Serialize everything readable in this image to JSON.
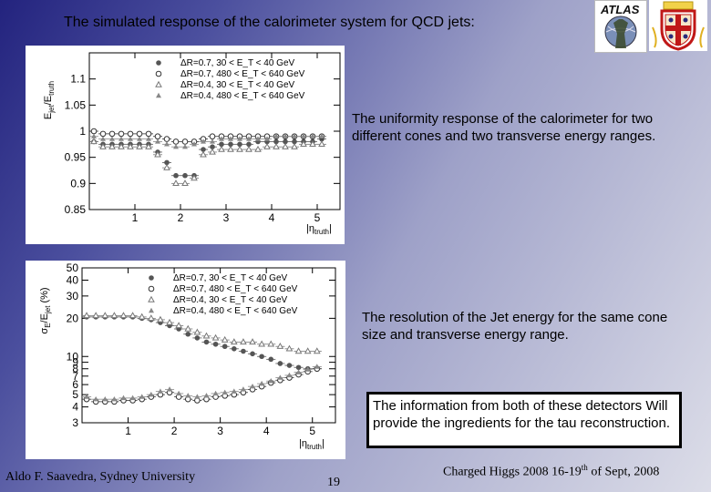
{
  "slide": {
    "title": "The simulated response of the calorimeter system for QCD jets:",
    "logos": [
      "ATLAS",
      "University of Sydney"
    ],
    "text_uniformity": "The uniformity response of the calorimeter for two different cones and two transverse energy ranges.",
    "text_resolution": "The resolution of the Jet energy for the same cone size and transverse energy range.",
    "text_info": "The information from both of these detectors Will provide the ingredients for the tau reconstruction.",
    "footer_left": "Aldo F. Saavedra, Sydney University",
    "page_number": "19",
    "footer_right_pre": "Charged Higgs 2008  16-19",
    "footer_right_sup": "th",
    "footer_right_post": " of Sept, 2008"
  },
  "chart_data": [
    {
      "type": "scatter",
      "title": "",
      "xlabel": "|η_truth|",
      "ylabel": "E_jet/E_truth",
      "xlim": [
        0,
        5.5
      ],
      "ylim": [
        0.85,
        1.15
      ],
      "x_ticks": [
        "1",
        "2",
        "3",
        "4",
        "5"
      ],
      "y_ticks": [
        "0.85",
        "0.9",
        "0.95",
        "1",
        "1.05",
        "1.1"
      ],
      "legend": "top-left",
      "legend_labels": [
        "ΔR=0.7,  30 < E_T < 40 GeV",
        "ΔR=0.7,  480 < E_T < 640 GeV",
        "ΔR=0.4,  30 < E_T < 40 GeV",
        "ΔR=0.4,  480 < E_T < 640 GeV"
      ],
      "x": [
        0.1,
        0.3,
        0.5,
        0.7,
        0.9,
        1.1,
        1.3,
        1.5,
        1.7,
        1.9,
        2.1,
        2.3,
        2.5,
        2.7,
        2.9,
        3.1,
        3.3,
        3.5,
        3.7,
        3.9,
        4.1,
        4.3,
        4.5,
        4.7,
        4.9,
        5.1
      ],
      "series": [
        {
          "marker": "filled-circle",
          "values": [
            0.98,
            0.975,
            0.975,
            0.975,
            0.975,
            0.975,
            0.975,
            0.96,
            0.94,
            0.915,
            0.915,
            0.915,
            0.965,
            0.97,
            0.975,
            0.975,
            0.975,
            0.975,
            0.98,
            0.98,
            0.98,
            0.98,
            0.98,
            0.98,
            0.98,
            0.985
          ]
        },
        {
          "marker": "open-circle",
          "values": [
            1.0,
            0.995,
            0.995,
            0.995,
            0.995,
            0.995,
            0.995,
            0.99,
            0.985,
            0.98,
            0.98,
            0.98,
            0.985,
            0.99,
            0.99,
            0.99,
            0.99,
            0.99,
            0.99,
            0.99,
            0.99,
            0.99,
            0.99,
            0.99,
            0.99,
            0.99
          ]
        },
        {
          "marker": "open-triangle",
          "values": [
            0.98,
            0.97,
            0.97,
            0.97,
            0.97,
            0.97,
            0.97,
            0.955,
            0.93,
            0.9,
            0.9,
            0.91,
            0.955,
            0.96,
            0.965,
            0.965,
            0.965,
            0.965,
            0.965,
            0.97,
            0.97,
            0.97,
            0.97,
            0.975,
            0.975,
            0.975
          ]
        },
        {
          "marker": "filled-triangle",
          "values": [
            0.99,
            0.985,
            0.985,
            0.985,
            0.985,
            0.985,
            0.985,
            0.98,
            0.975,
            0.97,
            0.97,
            0.975,
            0.98,
            0.98,
            0.985,
            0.985,
            0.985,
            0.985,
            0.985,
            0.985,
            0.99,
            0.99,
            0.99,
            0.99,
            0.99,
            0.99
          ]
        }
      ]
    },
    {
      "type": "scatter",
      "title": "",
      "xlabel": "|η_truth|",
      "ylabel": "σ_E/E_jet (%)",
      "xlim": [
        0,
        5.5
      ],
      "ylim": [
        3,
        50
      ],
      "y_scale": "log",
      "x_ticks": [
        "1",
        "2",
        "3",
        "4",
        "5"
      ],
      "y_ticks": [
        "3",
        "4",
        "5",
        "6",
        "7",
        "8",
        "9",
        "10",
        "20",
        "30",
        "40",
        "50"
      ],
      "legend": "top-left",
      "legend_labels": [
        "ΔR=0.7,  30 < E_T < 40 GeV",
        "ΔR=0.7,  480 < E_T < 640 GeV",
        "ΔR=0.4,  30 < E_T < 40 GeV",
        "ΔR=0.4,  480 < E_T < 640 GeV"
      ],
      "x": [
        0.1,
        0.3,
        0.5,
        0.7,
        0.9,
        1.1,
        1.3,
        1.5,
        1.7,
        1.9,
        2.1,
        2.3,
        2.5,
        2.7,
        2.9,
        3.1,
        3.3,
        3.5,
        3.7,
        3.9,
        4.1,
        4.3,
        4.5,
        4.7,
        4.9,
        5.1
      ],
      "series": [
        {
          "marker": "filled-circle",
          "values": [
            20.5,
            20.5,
            20.5,
            20.5,
            20.5,
            20.5,
            20,
            19.5,
            18.5,
            17.5,
            16.5,
            15,
            14,
            13,
            12.5,
            12,
            11.5,
            11,
            10.5,
            10,
            9.5,
            8.8,
            8.5,
            8.2,
            8,
            8
          ]
        },
        {
          "marker": "open-circle",
          "values": [
            4.6,
            4.4,
            4.4,
            4.4,
            4.5,
            4.5,
            4.6,
            4.8,
            5.0,
            5.2,
            4.8,
            4.6,
            4.5,
            4.6,
            4.8,
            4.9,
            5.0,
            5.2,
            5.5,
            5.8,
            6.2,
            6.5,
            6.8,
            7.2,
            7.6,
            8.0
          ]
        },
        {
          "marker": "open-triangle",
          "values": [
            21,
            21,
            21,
            21,
            21,
            21,
            20.5,
            20,
            19.5,
            18.5,
            17.5,
            16.5,
            15.5,
            14.5,
            14,
            13.5,
            13,
            13,
            13,
            12.5,
            12.5,
            12,
            11.5,
            11,
            11,
            11
          ]
        },
        {
          "marker": "filled-triangle",
          "values": [
            4.8,
            4.6,
            4.6,
            4.6,
            4.7,
            4.7,
            4.8,
            5.0,
            5.3,
            5.5,
            5.1,
            4.9,
            4.8,
            4.9,
            5.1,
            5.2,
            5.3,
            5.5,
            5.8,
            6.1,
            6.4,
            6.8,
            7.1,
            7.5,
            7.9,
            8.3
          ]
        }
      ]
    }
  ]
}
